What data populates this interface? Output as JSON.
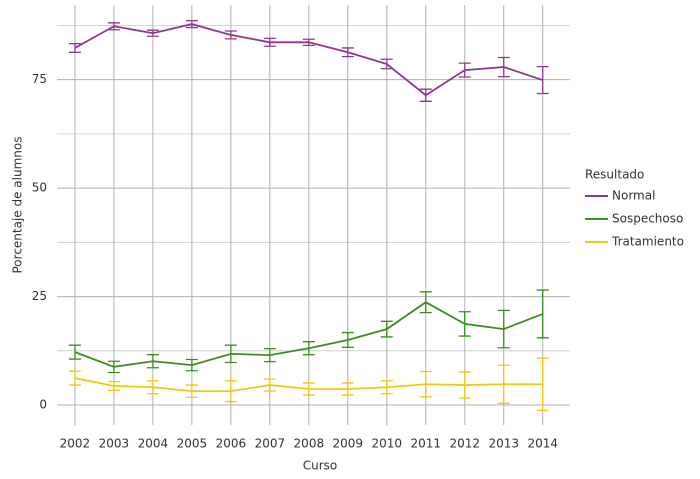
{
  "chart_data": {
    "type": "line",
    "x_label": "Curso",
    "y_label": "Porcentaje de alumnos",
    "x": [
      2002,
      2003,
      2004,
      2005,
      2006,
      2007,
      2008,
      2009,
      2010,
      2011,
      2012,
      2013,
      2014
    ],
    "series": [
      {
        "name": "Normal",
        "color": "#8e3a8c",
        "values": [
          82.3,
          87.3,
          85.7,
          87.8,
          85.3,
          83.6,
          83.6,
          81.3,
          78.6,
          71.4,
          77.2,
          77.9,
          74.9
        ],
        "errors": [
          1.0,
          0.8,
          0.7,
          0.8,
          0.9,
          0.9,
          0.7,
          1.0,
          1.1,
          1.4,
          1.6,
          2.2,
          3.1
        ]
      },
      {
        "name": "Sospechoso",
        "color": "#3c8c23",
        "values": [
          12.2,
          8.8,
          10.1,
          9.2,
          11.8,
          11.5,
          13.1,
          15.0,
          17.5,
          23.7,
          18.7,
          17.5,
          21.0
        ],
        "errors": [
          1.6,
          1.3,
          1.5,
          1.3,
          2.0,
          1.5,
          1.5,
          1.7,
          1.8,
          2.4,
          2.8,
          4.3,
          5.5
        ]
      },
      {
        "name": "Tratamiento",
        "color": "#f2c80f",
        "values": [
          6.2,
          4.4,
          4.1,
          3.2,
          3.2,
          4.6,
          3.7,
          3.7,
          4.1,
          4.8,
          4.6,
          4.8,
          4.8
        ],
        "errors": [
          1.6,
          1.0,
          1.5,
          1.4,
          2.4,
          1.4,
          1.4,
          1.4,
          1.5,
          2.9,
          3.0,
          4.4,
          6.0
        ]
      }
    ],
    "legend_title": "Resultado",
    "xlim": [
      2001.54,
      2014.7
    ],
    "xticks": [
      2002,
      2003,
      2004,
      2005,
      2006,
      2007,
      2008,
      2009,
      2010,
      2011,
      2012,
      2013,
      2014
    ],
    "ylim": [
      -4.6,
      92.2
    ],
    "yticks": [
      0,
      25,
      50,
      75
    ],
    "grid": true,
    "minor_grid": true,
    "legend": "right"
  }
}
